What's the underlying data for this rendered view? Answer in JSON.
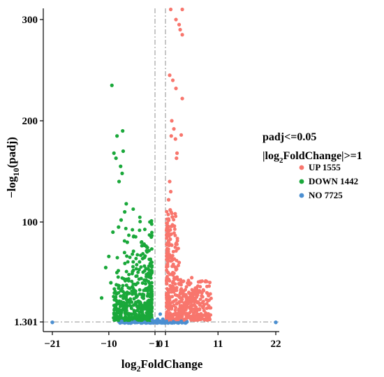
{
  "chart_data": {
    "type": "scatter",
    "xlabel_main": "log",
    "xlabel_sub": "2",
    "xlabel_rest": "FoldChange",
    "ylabel_pre": "−log",
    "ylabel_sub": "10",
    "ylabel_rest": "(padj)",
    "x_ticks": [
      {
        "value": -21,
        "label": "−21"
      },
      {
        "value": -10,
        "label": "−10"
      },
      {
        "value": -1,
        "label": "−1"
      },
      {
        "value": 0,
        "label": "0"
      },
      {
        "value": 1,
        "label": "1"
      },
      {
        "value": 11,
        "label": "11"
      },
      {
        "value": 22,
        "label": "22"
      }
    ],
    "y_ticks": [
      {
        "value": 1.301,
        "label": "1.301"
      },
      {
        "value": 100,
        "label": "100"
      },
      {
        "value": 200,
        "label": "200"
      },
      {
        "value": 300,
        "label": "300"
      }
    ],
    "thresholds": {
      "x": [
        -1,
        1
      ],
      "y": 1.301
    },
    "legend": {
      "title_line1": "padj<=0.05",
      "title_line2_pre": "|log",
      "title_line2_sub": "2",
      "title_line2_rest": "FoldChange|>=1",
      "placement": "right",
      "entries": [
        {
          "name": "UP",
          "count": "1555",
          "color": "#F8766D"
        },
        {
          "name": "DOWN",
          "count": "1442",
          "color": "#1AA83A"
        },
        {
          "name": "NO",
          "count": "7725",
          "color": "#4B8FD1"
        }
      ]
    },
    "series": [
      {
        "name": "UP",
        "points": [
          [
            2.0,
            310
          ],
          [
            4.2,
            310
          ],
          [
            3.0,
            300
          ],
          [
            3.6,
            295
          ],
          [
            4.2,
            285
          ],
          [
            3.8,
            290
          ],
          [
            1.8,
            245
          ],
          [
            2.4,
            240
          ],
          [
            3.0,
            232
          ],
          [
            4.2,
            222
          ],
          [
            2.2,
            200
          ],
          [
            2.6,
            192
          ],
          [
            4.0,
            186
          ],
          [
            3.2,
            168
          ],
          [
            3.1,
            163
          ],
          [
            2.1,
            185
          ],
          [
            2.9,
            182
          ],
          [
            1.8,
            140
          ],
          [
            2.0,
            130
          ],
          [
            1.6,
            122
          ],
          [
            1.9,
            112
          ],
          [
            2.3,
            105
          ],
          [
            2.7,
            96
          ],
          [
            2.1,
            88
          ],
          [
            6.0,
            45
          ],
          [
            6.4,
            32
          ],
          [
            3.6,
            60
          ],
          [
            3.0,
            55
          ],
          [
            2.4,
            50
          ]
        ]
      },
      {
        "name": "DOWN",
        "points": [
          [
            -9.4,
            235
          ],
          [
            -8.4,
            185
          ],
          [
            -7.3,
            190
          ],
          [
            -7.2,
            170
          ],
          [
            -9.0,
            168
          ],
          [
            -8.6,
            163
          ],
          [
            -7.7,
            155
          ],
          [
            -7.4,
            148
          ],
          [
            -8.0,
            140
          ],
          [
            -6.6,
            118
          ],
          [
            -6.9,
            110
          ],
          [
            -7.6,
            102
          ],
          [
            -8.1,
            95
          ],
          [
            -6.4,
            80
          ],
          [
            -9.2,
            90
          ],
          [
            -10.0,
            66
          ],
          [
            -10.6,
            55
          ],
          [
            -11.4,
            25
          ],
          [
            -9.6,
            40
          ],
          [
            -8.8,
            30
          ]
        ]
      },
      {
        "name": "NO",
        "points": [
          [
            -21,
            1
          ],
          [
            -21,
            0.8
          ],
          [
            22,
            1.0
          ],
          [
            22,
            0.8
          ],
          [
            -7.5,
            2
          ],
          [
            -5,
            1.5
          ],
          [
            -3,
            1
          ],
          [
            -1.5,
            3
          ],
          [
            -0.5,
            4
          ],
          [
            0,
            9
          ],
          [
            0.5,
            4
          ],
          [
            1.2,
            2
          ],
          [
            2.5,
            1.5
          ],
          [
            4,
            2
          ],
          [
            5,
            1
          ]
        ]
      }
    ]
  }
}
